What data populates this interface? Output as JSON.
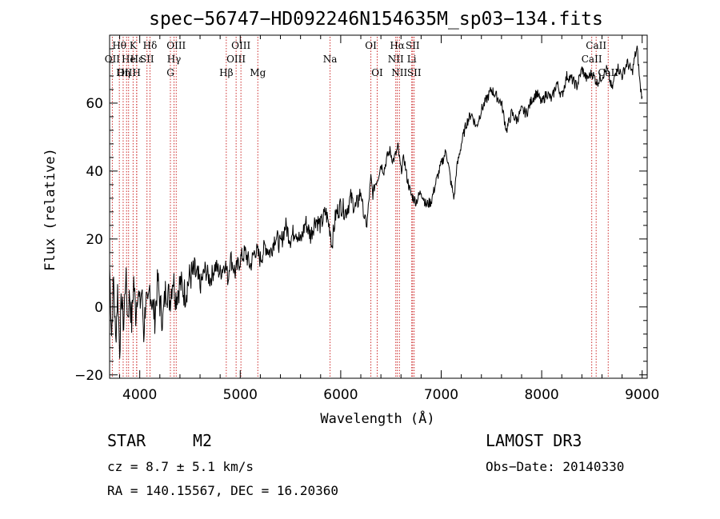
{
  "chart_data": {
    "type": "line",
    "title": "spec−56747−HD092246N154635M_sp03−134.fits",
    "xlabel": "Wavelength (Å)",
    "ylabel": "Flux (relative)",
    "xlim": [
      3700,
      9050
    ],
    "ylim": [
      -21,
      80
    ],
    "x_ticks": [
      {
        "value": 4000,
        "label": "4000"
      },
      {
        "value": 5000,
        "label": "5000"
      },
      {
        "value": 6000,
        "label": "6000"
      },
      {
        "value": 7000,
        "label": "7000"
      },
      {
        "value": 8000,
        "label": "8000"
      },
      {
        "value": 9000,
        "label": "9000"
      }
    ],
    "y_ticks": [
      {
        "value": -20,
        "label": "−20"
      },
      {
        "value": 0,
        "label": "0"
      },
      {
        "value": 20,
        "label": "20"
      },
      {
        "value": 40,
        "label": "40"
      },
      {
        "value": 60,
        "label": "60"
      }
    ],
    "series": [
      {
        "name": "flux",
        "x": [
          3700,
          3720,
          3740,
          3760,
          3780,
          3800,
          3820,
          3840,
          3860,
          3880,
          3900,
          3920,
          3940,
          3960,
          3980,
          4000,
          4020,
          4040,
          4060,
          4080,
          4100,
          4120,
          4150,
          4180,
          4200,
          4230,
          4260,
          4300,
          4330,
          4360,
          4400,
          4450,
          4500,
          4550,
          4600,
          4650,
          4700,
          4750,
          4800,
          4850,
          4880,
          4900,
          4950,
          5000,
          5050,
          5100,
          5150,
          5200,
          5250,
          5300,
          5350,
          5400,
          5450,
          5500,
          5550,
          5600,
          5650,
          5700,
          5750,
          5800,
          5850,
          5900,
          5910,
          5950,
          6000,
          6050,
          6100,
          6150,
          6200,
          6230,
          6260,
          6280,
          6300,
          6320,
          6340,
          6370,
          6400,
          6430,
          6460,
          6490,
          6520,
          6550,
          6570,
          6600,
          6630,
          6660,
          6700,
          6750,
          6800,
          6850,
          6900,
          6950,
          7000,
          7050,
          7100,
          7130,
          7150,
          7200,
          7250,
          7300,
          7350,
          7400,
          7450,
          7500,
          7550,
          7600,
          7630,
          7650,
          7700,
          7750,
          7800,
          7850,
          7900,
          7950,
          8000,
          8050,
          8100,
          8150,
          8200,
          8250,
          8300,
          8350,
          8400,
          8450,
          8500,
          8550,
          8600,
          8650,
          8700,
          8750,
          8800,
          8850,
          8900,
          8930,
          8950,
          8980,
          9000
        ],
        "values": [
          12,
          -8,
          8,
          -10,
          5,
          -12,
          3,
          -6,
          10,
          -3,
          4,
          -5,
          8,
          -2,
          6,
          0,
          5,
          -8,
          3,
          -2,
          6,
          2,
          -3,
          8,
          1,
          -4,
          6,
          2,
          9,
          3,
          7,
          4,
          9,
          10,
          6,
          11,
          8,
          12,
          10,
          13,
          8,
          15,
          10,
          14,
          16,
          12,
          17,
          14,
          18,
          16,
          21,
          18,
          24,
          20,
          23,
          19,
          25,
          21,
          26,
          24,
          28,
          22,
          18,
          27,
          30,
          28,
          32,
          29,
          34,
          27,
          24,
          31,
          38,
          33,
          36,
          38,
          42,
          40,
          44,
          46,
          43,
          45,
          47,
          40,
          44,
          38,
          33,
          31,
          34,
          30,
          31,
          37,
          42,
          46,
          36,
          32,
          40,
          48,
          54,
          57,
          53,
          58,
          61,
          64,
          62,
          60,
          55,
          52,
          57,
          55,
          58,
          57,
          61,
          63,
          60,
          63,
          61,
          66,
          62,
          68,
          67,
          65,
          70,
          67,
          69,
          66,
          68,
          70,
          64,
          71,
          68,
          72,
          69,
          74,
          76,
          65,
          62
        ]
      }
    ],
    "spectral_lines": [
      {
        "label": "Hθ",
        "wavelength": 3797,
        "row": 1
      },
      {
        "label": "OII",
        "wavelength": 3727,
        "row": 2
      },
      {
        "label": "OIII",
        "wavelength": 3869,
        "row": 3
      },
      {
        "label": "He",
        "wavelength": 3889,
        "row": 2
      },
      {
        "label": "Hη",
        "wavelength": 3835,
        "row": 3
      },
      {
        "label": "K",
        "wavelength": 3934,
        "row": 1
      },
      {
        "label": "H",
        "wavelength": 3969,
        "row": 3
      },
      {
        "label": "Hε",
        "wavelength": 3970,
        "row": 2
      },
      {
        "label": "Hδ",
        "wavelength": 4102,
        "row": 1
      },
      {
        "label": "SII",
        "wavelength": 4072,
        "row": 2
      },
      {
        "label": "OIII",
        "wavelength": 4363,
        "row": 1
      },
      {
        "label": "Hγ",
        "wavelength": 4341,
        "row": 2
      },
      {
        "label": "G",
        "wavelength": 4305,
        "row": 3
      },
      {
        "label": "OIII",
        "wavelength": 5007,
        "row": 1
      },
      {
        "label": "OIII",
        "wavelength": 4959,
        "row": 2
      },
      {
        "label": "Hβ",
        "wavelength": 4861,
        "row": 3
      },
      {
        "label": "Mg",
        "wavelength": 5175,
        "row": 3
      },
      {
        "label": "Na",
        "wavelength": 5894,
        "row": 2
      },
      {
        "label": "OI",
        "wavelength": 6300,
        "row": 1
      },
      {
        "label": "OI",
        "wavelength": 6363,
        "row": 3
      },
      {
        "label": "Hα",
        "wavelength": 6563,
        "row": 1
      },
      {
        "label": "SII",
        "wavelength": 6716,
        "row": 1
      },
      {
        "label": "NII",
        "wavelength": 6548,
        "row": 2
      },
      {
        "label": "Li",
        "wavelength": 6707,
        "row": 2
      },
      {
        "label": "NII",
        "wavelength": 6584,
        "row": 3
      },
      {
        "label": "SII",
        "wavelength": 6731,
        "row": 3
      },
      {
        "label": "CaII",
        "wavelength": 8542,
        "row": 1
      },
      {
        "label": "CaII",
        "wavelength": 8498,
        "row": 2
      },
      {
        "label": "CaII",
        "wavelength": 8662,
        "row": 3
      }
    ]
  },
  "info": {
    "object_class": "STAR",
    "subclass": "M2",
    "survey": "LAMOST DR3",
    "redshift": "cz = 8.7 ± 5.1 km/s",
    "obs_date": "Obs−Date: 20140330",
    "coordinates": "RA = 140.15567, DEC =  16.20360"
  },
  "colors": {
    "line_marker": "#cc2a2a",
    "spectrum": "#000000",
    "axes": "#000000"
  }
}
